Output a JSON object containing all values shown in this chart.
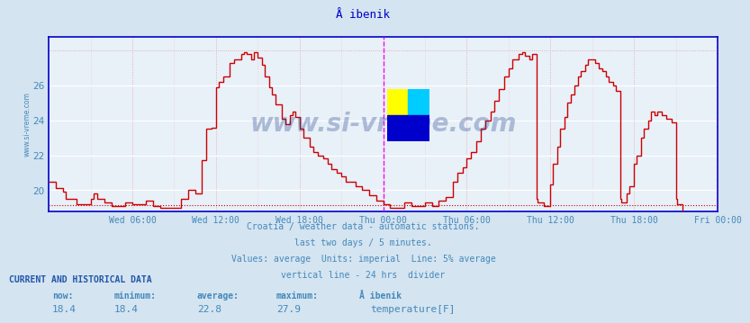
{
  "title": "Å ibenik",
  "bg_color": "#d4e4f0",
  "plot_bg_color": "#e8f0f8",
  "line_color": "#cc0000",
  "axis_color": "#0000cc",
  "text_color": "#4488bb",
  "vline_color": "#ff00ff",
  "hline_color": "#cc0000",
  "watermark": "www.si-vreme.com",
  "ylabel_text": "www.si-vreme.com",
  "subtitle1": "Croatia / weather data - automatic stations.",
  "subtitle2": "last two days / 5 minutes.",
  "subtitle3": "Values: average  Units: imperial  Line: 5% average",
  "subtitle4": "vertical line - 24 hrs  divider",
  "stats_header": "CURRENT AND HISTORICAL DATA",
  "legend_label": "temperature[F]",
  "ylim": [
    18.8,
    28.8
  ],
  "yticks": [
    20,
    22,
    24,
    26
  ],
  "hline_y": 19.15,
  "x_tick_hours": [
    6,
    12,
    18,
    24,
    30,
    36,
    42,
    48
  ],
  "x_tick_labels": [
    "Wed 06:00",
    "Wed 12:00",
    "Wed 18:00",
    "Thu 00:00",
    "Thu 06:00",
    "Thu 12:00",
    "Thu 18:00",
    "Fri 00:00"
  ],
  "temp_data": [
    [
      0.0,
      20.5
    ],
    [
      0.5,
      20.5
    ],
    [
      0.5,
      20.1
    ],
    [
      1.0,
      20.1
    ],
    [
      1.0,
      19.9
    ],
    [
      1.2,
      19.9
    ],
    [
      1.2,
      19.5
    ],
    [
      2.0,
      19.5
    ],
    [
      2.0,
      19.2
    ],
    [
      3.0,
      19.2
    ],
    [
      3.0,
      19.5
    ],
    [
      3.2,
      19.5
    ],
    [
      3.2,
      19.8
    ],
    [
      3.5,
      19.8
    ],
    [
      3.5,
      19.5
    ],
    [
      4.0,
      19.5
    ],
    [
      4.0,
      19.3
    ],
    [
      4.5,
      19.3
    ],
    [
      4.5,
      19.1
    ],
    [
      5.5,
      19.1
    ],
    [
      5.5,
      19.3
    ],
    [
      6.0,
      19.3
    ],
    [
      6.0,
      19.2
    ],
    [
      7.0,
      19.2
    ],
    [
      7.0,
      19.4
    ],
    [
      7.5,
      19.4
    ],
    [
      7.5,
      19.1
    ],
    [
      8.0,
      19.1
    ],
    [
      8.0,
      19.0
    ],
    [
      9.5,
      19.0
    ],
    [
      9.5,
      19.5
    ],
    [
      10.0,
      19.5
    ],
    [
      10.0,
      20.0
    ],
    [
      10.5,
      20.0
    ],
    [
      10.5,
      19.8
    ],
    [
      11.0,
      19.8
    ],
    [
      11.0,
      21.7
    ],
    [
      11.3,
      21.7
    ],
    [
      11.3,
      23.5
    ],
    [
      11.7,
      23.5
    ],
    [
      11.7,
      23.6
    ],
    [
      12.0,
      23.6
    ],
    [
      12.0,
      25.9
    ],
    [
      12.2,
      25.9
    ],
    [
      12.2,
      26.2
    ],
    [
      12.5,
      26.2
    ],
    [
      12.5,
      26.5
    ],
    [
      13.0,
      26.5
    ],
    [
      13.0,
      27.3
    ],
    [
      13.3,
      27.3
    ],
    [
      13.3,
      27.5
    ],
    [
      13.8,
      27.5
    ],
    [
      13.8,
      27.8
    ],
    [
      14.0,
      27.8
    ],
    [
      14.0,
      27.9
    ],
    [
      14.2,
      27.9
    ],
    [
      14.2,
      27.8
    ],
    [
      14.5,
      27.8
    ],
    [
      14.5,
      27.5
    ],
    [
      14.7,
      27.5
    ],
    [
      14.7,
      27.9
    ],
    [
      15.0,
      27.9
    ],
    [
      15.0,
      27.6
    ],
    [
      15.3,
      27.6
    ],
    [
      15.3,
      27.2
    ],
    [
      15.5,
      27.2
    ],
    [
      15.5,
      26.5
    ],
    [
      15.8,
      26.5
    ],
    [
      15.8,
      25.9
    ],
    [
      16.0,
      25.9
    ],
    [
      16.0,
      25.5
    ],
    [
      16.3,
      25.5
    ],
    [
      16.3,
      24.9
    ],
    [
      16.7,
      24.9
    ],
    [
      16.7,
      24.1
    ],
    [
      17.0,
      24.1
    ],
    [
      17.0,
      23.8
    ],
    [
      17.3,
      23.8
    ],
    [
      17.3,
      24.3
    ],
    [
      17.5,
      24.3
    ],
    [
      17.5,
      24.5
    ],
    [
      17.7,
      24.5
    ],
    [
      17.7,
      24.2
    ],
    [
      18.0,
      24.2
    ],
    [
      18.0,
      23.5
    ],
    [
      18.3,
      23.5
    ],
    [
      18.3,
      23.0
    ],
    [
      18.7,
      23.0
    ],
    [
      18.7,
      22.5
    ],
    [
      19.0,
      22.5
    ],
    [
      19.0,
      22.2
    ],
    [
      19.3,
      22.2
    ],
    [
      19.3,
      22.0
    ],
    [
      19.7,
      22.0
    ],
    [
      19.7,
      21.8
    ],
    [
      20.0,
      21.8
    ],
    [
      20.0,
      21.5
    ],
    [
      20.3,
      21.5
    ],
    [
      20.3,
      21.2
    ],
    [
      20.7,
      21.2
    ],
    [
      20.7,
      21.0
    ],
    [
      21.0,
      21.0
    ],
    [
      21.0,
      20.8
    ],
    [
      21.3,
      20.8
    ],
    [
      21.3,
      20.5
    ],
    [
      22.0,
      20.5
    ],
    [
      22.0,
      20.2
    ],
    [
      22.5,
      20.2
    ],
    [
      22.5,
      20.0
    ],
    [
      23.0,
      20.0
    ],
    [
      23.0,
      19.7
    ],
    [
      23.5,
      19.7
    ],
    [
      23.5,
      19.4
    ],
    [
      24.0,
      19.4
    ],
    [
      24.0,
      19.2
    ],
    [
      24.5,
      19.2
    ],
    [
      24.5,
      19.0
    ],
    [
      25.5,
      19.0
    ],
    [
      25.5,
      19.3
    ],
    [
      26.0,
      19.3
    ],
    [
      26.0,
      19.1
    ],
    [
      27.0,
      19.1
    ],
    [
      27.0,
      19.3
    ],
    [
      27.5,
      19.3
    ],
    [
      27.5,
      19.1
    ],
    [
      28.0,
      19.1
    ],
    [
      28.0,
      19.4
    ],
    [
      28.5,
      19.4
    ],
    [
      28.5,
      19.6
    ],
    [
      29.0,
      19.6
    ],
    [
      29.0,
      20.5
    ],
    [
      29.3,
      20.5
    ],
    [
      29.3,
      21.0
    ],
    [
      29.7,
      21.0
    ],
    [
      29.7,
      21.3
    ],
    [
      30.0,
      21.3
    ],
    [
      30.0,
      21.8
    ],
    [
      30.3,
      21.8
    ],
    [
      30.3,
      22.2
    ],
    [
      30.7,
      22.2
    ],
    [
      30.7,
      22.8
    ],
    [
      31.0,
      22.8
    ],
    [
      31.0,
      23.5
    ],
    [
      31.3,
      23.5
    ],
    [
      31.3,
      24.0
    ],
    [
      31.7,
      24.0
    ],
    [
      31.7,
      24.5
    ],
    [
      32.0,
      24.5
    ],
    [
      32.0,
      25.1
    ],
    [
      32.3,
      25.1
    ],
    [
      32.3,
      25.8
    ],
    [
      32.7,
      25.8
    ],
    [
      32.7,
      26.5
    ],
    [
      33.0,
      26.5
    ],
    [
      33.0,
      27.0
    ],
    [
      33.3,
      27.0
    ],
    [
      33.3,
      27.5
    ],
    [
      33.7,
      27.5
    ],
    [
      33.7,
      27.8
    ],
    [
      34.0,
      27.8
    ],
    [
      34.0,
      27.9
    ],
    [
      34.2,
      27.9
    ],
    [
      34.2,
      27.7
    ],
    [
      34.5,
      27.7
    ],
    [
      34.5,
      27.5
    ],
    [
      34.7,
      27.5
    ],
    [
      34.7,
      27.8
    ],
    [
      35.0,
      27.8
    ],
    [
      35.0,
      19.5
    ],
    [
      35.1,
      19.5
    ],
    [
      35.1,
      19.3
    ],
    [
      35.5,
      19.3
    ],
    [
      35.5,
      19.1
    ],
    [
      36.0,
      19.1
    ],
    [
      36.0,
      20.3
    ],
    [
      36.2,
      20.3
    ],
    [
      36.2,
      21.5
    ],
    [
      36.5,
      21.5
    ],
    [
      36.5,
      22.5
    ],
    [
      36.7,
      22.5
    ],
    [
      36.7,
      23.5
    ],
    [
      37.0,
      23.5
    ],
    [
      37.0,
      24.2
    ],
    [
      37.2,
      24.2
    ],
    [
      37.2,
      25.0
    ],
    [
      37.5,
      25.0
    ],
    [
      37.5,
      25.5
    ],
    [
      37.7,
      25.5
    ],
    [
      37.7,
      26.0
    ],
    [
      38.0,
      26.0
    ],
    [
      38.0,
      26.5
    ],
    [
      38.2,
      26.5
    ],
    [
      38.2,
      26.8
    ],
    [
      38.5,
      26.8
    ],
    [
      38.5,
      27.2
    ],
    [
      38.7,
      27.2
    ],
    [
      38.7,
      27.5
    ],
    [
      39.0,
      27.5
    ],
    [
      39.0,
      27.5
    ],
    [
      39.2,
      27.5
    ],
    [
      39.2,
      27.3
    ],
    [
      39.5,
      27.3
    ],
    [
      39.5,
      27.0
    ],
    [
      39.7,
      27.0
    ],
    [
      39.7,
      26.8
    ],
    [
      40.0,
      26.8
    ],
    [
      40.0,
      26.5
    ],
    [
      40.2,
      26.5
    ],
    [
      40.2,
      26.2
    ],
    [
      40.5,
      26.2
    ],
    [
      40.5,
      26.0
    ],
    [
      40.7,
      26.0
    ],
    [
      40.7,
      25.7
    ],
    [
      41.0,
      25.7
    ],
    [
      41.0,
      19.5
    ],
    [
      41.1,
      19.5
    ],
    [
      41.1,
      19.3
    ],
    [
      41.5,
      19.3
    ],
    [
      41.5,
      19.8
    ],
    [
      41.7,
      19.8
    ],
    [
      41.7,
      20.2
    ],
    [
      42.0,
      20.2
    ],
    [
      42.0,
      21.5
    ],
    [
      42.2,
      21.5
    ],
    [
      42.2,
      22.0
    ],
    [
      42.5,
      22.0
    ],
    [
      42.5,
      23.0
    ],
    [
      42.7,
      23.0
    ],
    [
      42.7,
      23.5
    ],
    [
      43.0,
      23.5
    ],
    [
      43.0,
      24.0
    ],
    [
      43.2,
      24.0
    ],
    [
      43.2,
      24.5
    ],
    [
      43.5,
      24.5
    ],
    [
      43.5,
      24.3
    ],
    [
      43.7,
      24.3
    ],
    [
      43.7,
      24.5
    ],
    [
      44.0,
      24.5
    ],
    [
      44.0,
      24.3
    ],
    [
      44.3,
      24.3
    ],
    [
      44.3,
      24.1
    ],
    [
      44.7,
      24.1
    ],
    [
      44.7,
      23.9
    ],
    [
      45.0,
      23.9
    ],
    [
      45.0,
      19.5
    ],
    [
      45.1,
      19.5
    ],
    [
      45.1,
      19.2
    ],
    [
      45.5,
      19.2
    ],
    [
      45.5,
      18.4
    ],
    [
      48.0,
      18.4
    ]
  ]
}
